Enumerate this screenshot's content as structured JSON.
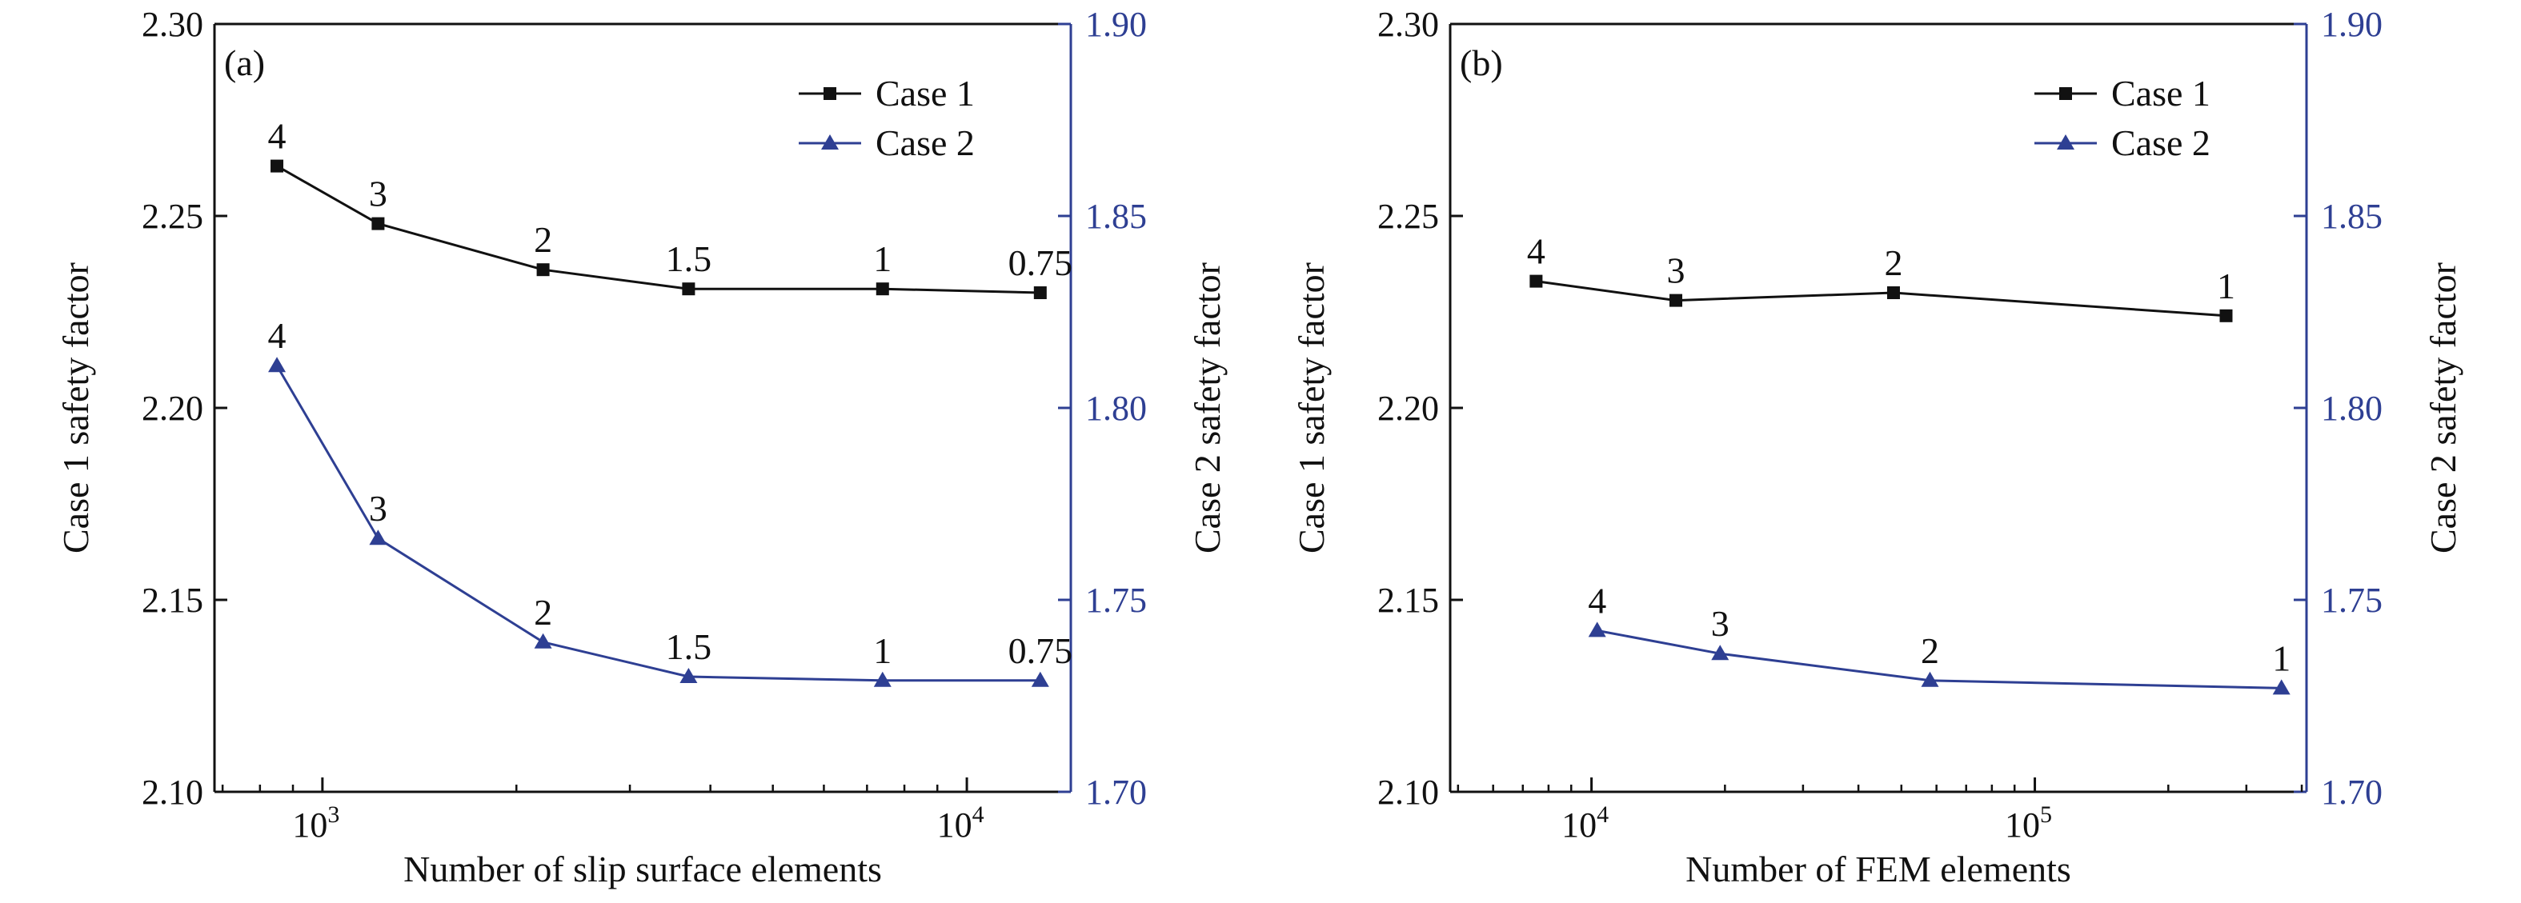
{
  "chart_data": [
    {
      "type": "line",
      "panel_label": "(a)",
      "xlabel": "Number of slip surface elements",
      "ylabel_left": "Case 1 safety factor",
      "ylabel_right": "Case 2 safety factor",
      "x_scale": "log",
      "xlim": [
        680,
        14500
      ],
      "x_ticks": [
        {
          "value": 1000,
          "base": "10",
          "exp": "3"
        },
        {
          "value": 10000,
          "base": "10",
          "exp": "4"
        }
      ],
      "ylim_left": [
        2.1,
        2.3
      ],
      "yticks_left": [
        "2.10",
        "2.15",
        "2.20",
        "2.25",
        "2.30"
      ],
      "ylim_right": [
        1.7,
        1.9
      ],
      "yticks_right": [
        "1.70",
        "1.75",
        "1.80",
        "1.85",
        "1.90"
      ],
      "legend_position": "top-right",
      "series": [
        {
          "name": "Case 1",
          "axis": "left",
          "marker": "square",
          "color": "#111111",
          "points": [
            {
              "x": 850,
              "y": 2.263,
              "label": "4"
            },
            {
              "x": 1220,
              "y": 2.248,
              "label": "3"
            },
            {
              "x": 2200,
              "y": 2.236,
              "label": "2"
            },
            {
              "x": 3700,
              "y": 2.231,
              "label": "1.5"
            },
            {
              "x": 7400,
              "y": 2.231,
              "label": "1"
            },
            {
              "x": 13000,
              "y": 2.23,
              "label": "0.75"
            }
          ]
        },
        {
          "name": "Case 2",
          "axis": "right",
          "marker": "triangle",
          "color": "#2e3f93",
          "points": [
            {
              "x": 850,
              "y": 1.811,
              "label": "4"
            },
            {
              "x": 1220,
              "y": 1.766,
              "label": "3"
            },
            {
              "x": 2200,
              "y": 1.739,
              "label": "2"
            },
            {
              "x": 3700,
              "y": 1.73,
              "label": "1.5"
            },
            {
              "x": 7400,
              "y": 1.729,
              "label": "1"
            },
            {
              "x": 13000,
              "y": 1.729,
              "label": "0.75"
            }
          ]
        }
      ]
    },
    {
      "type": "line",
      "panel_label": "(b)",
      "xlabel": "Number of FEM elements",
      "ylabel_left": "Case 1 safety factor",
      "ylabel_right": "Case 2 safety factor",
      "x_scale": "log",
      "xlim": [
        4800,
        410000
      ],
      "x_ticks": [
        {
          "value": 10000,
          "base": "10",
          "exp": "4"
        },
        {
          "value": 100000,
          "base": "10",
          "exp": "5"
        }
      ],
      "ylim_left": [
        2.1,
        2.3
      ],
      "yticks_left": [
        "2.10",
        "2.15",
        "2.20",
        "2.25",
        "2.30"
      ],
      "ylim_right": [
        1.7,
        1.9
      ],
      "yticks_right": [
        "1.70",
        "1.75",
        "1.80",
        "1.85",
        "1.90"
      ],
      "legend_position": "top-right",
      "series": [
        {
          "name": "Case 1",
          "axis": "left",
          "marker": "square",
          "color": "#111111",
          "points": [
            {
              "x": 7500,
              "y": 2.233,
              "label": "4"
            },
            {
              "x": 15500,
              "y": 2.228,
              "label": "3"
            },
            {
              "x": 48000,
              "y": 2.23,
              "label": "2"
            },
            {
              "x": 270000,
              "y": 2.224,
              "label": "1"
            }
          ]
        },
        {
          "name": "Case 2",
          "axis": "right",
          "marker": "triangle",
          "color": "#2e3f93",
          "points": [
            {
              "x": 10300,
              "y": 1.742,
              "label": "4"
            },
            {
              "x": 19500,
              "y": 1.736,
              "label": "3"
            },
            {
              "x": 58000,
              "y": 1.729,
              "label": "2"
            },
            {
              "x": 360000,
              "y": 1.727,
              "label": "1"
            }
          ]
        }
      ]
    }
  ]
}
